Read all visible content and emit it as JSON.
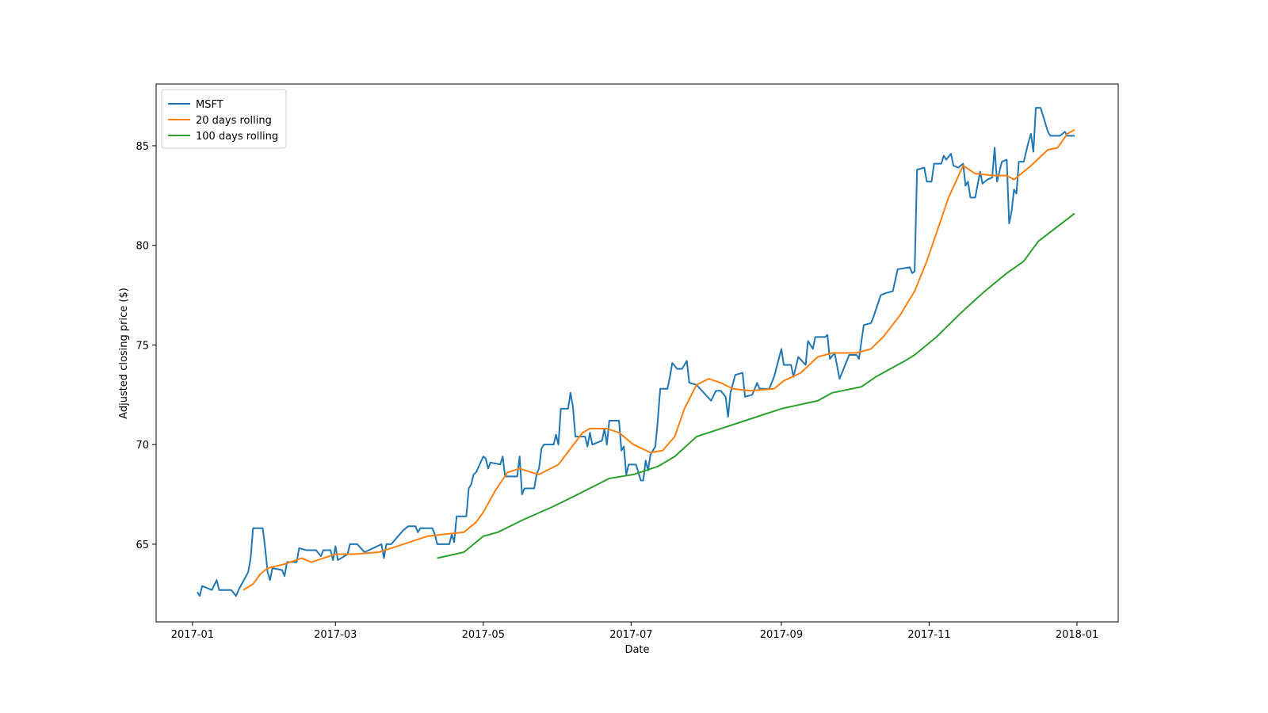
{
  "chart_data": {
    "type": "line",
    "xlabel": "Date",
    "ylabel": "Adjusted closing price ($)",
    "xlim": [
      "2016-12-17",
      "2018-01-18"
    ],
    "ylim": [
      61.1,
      88.1
    ],
    "xticks": [
      {
        "value": "2017-01-01",
        "label": "2017-01"
      },
      {
        "value": "2017-03-01",
        "label": "2017-03"
      },
      {
        "value": "2017-05-01",
        "label": "2017-05"
      },
      {
        "value": "2017-07-01",
        "label": "2017-07"
      },
      {
        "value": "2017-09-01",
        "label": "2017-09"
      },
      {
        "value": "2017-11-01",
        "label": "2017-11"
      },
      {
        "value": "2018-01-01",
        "label": "2018-01"
      }
    ],
    "yticks": [
      65,
      70,
      75,
      80,
      85
    ],
    "legend": "upper left",
    "grid": false,
    "series": [
      {
        "name": "MSFT",
        "color": "#1f77b4",
        "x": [
          "2017-01-03",
          "2017-01-04",
          "2017-01-05",
          "2017-01-09",
          "2017-01-11",
          "2017-01-12",
          "2017-01-17",
          "2017-01-19",
          "2017-01-20",
          "2017-01-24",
          "2017-01-25",
          "2017-01-26",
          "2017-01-30",
          "2017-01-31",
          "2017-02-01",
          "2017-02-02",
          "2017-02-03",
          "2017-02-07",
          "2017-02-08",
          "2017-02-09",
          "2017-02-13",
          "2017-02-14",
          "2017-02-17",
          "2017-02-21",
          "2017-02-23",
          "2017-02-24",
          "2017-02-27",
          "2017-02-28",
          "2017-03-01",
          "2017-03-02",
          "2017-03-06",
          "2017-03-07",
          "2017-03-10",
          "2017-03-13",
          "2017-03-20",
          "2017-03-21",
          "2017-03-22",
          "2017-03-24",
          "2017-03-29",
          "2017-03-31",
          "2017-04-03",
          "2017-04-04",
          "2017-04-05",
          "2017-04-10",
          "2017-04-11",
          "2017-04-12",
          "2017-04-17",
          "2017-04-18",
          "2017-04-19",
          "2017-04-20",
          "2017-04-24",
          "2017-04-25",
          "2017-04-26",
          "2017-04-27",
          "2017-04-28",
          "2017-05-01",
          "2017-05-02",
          "2017-05-03",
          "2017-05-04",
          "2017-05-08",
          "2017-05-09",
          "2017-05-10",
          "2017-05-15",
          "2017-05-16",
          "2017-05-17",
          "2017-05-18",
          "2017-05-22",
          "2017-05-23",
          "2017-05-24",
          "2017-05-25",
          "2017-05-26",
          "2017-05-30",
          "2017-05-31",
          "2017-06-01",
          "2017-06-02",
          "2017-06-05",
          "2017-06-06",
          "2017-06-07",
          "2017-06-08",
          "2017-06-12",
          "2017-06-13",
          "2017-06-14",
          "2017-06-15",
          "2017-06-19",
          "2017-06-20",
          "2017-06-21",
          "2017-06-22",
          "2017-06-26",
          "2017-06-27",
          "2017-06-28",
          "2017-06-29",
          "2017-06-30",
          "2017-07-03",
          "2017-07-05",
          "2017-07-06",
          "2017-07-07",
          "2017-07-08",
          "2017-07-09",
          "2017-07-11",
          "2017-07-12",
          "2017-07-13",
          "2017-07-16",
          "2017-07-17",
          "2017-07-18",
          "2017-07-20",
          "2017-07-22",
          "2017-07-24",
          "2017-07-25",
          "2017-07-28",
          "2017-07-31",
          "2017-08-03",
          "2017-08-05",
          "2017-08-07",
          "2017-08-09",
          "2017-08-10",
          "2017-08-11",
          "2017-08-13",
          "2017-08-16",
          "2017-08-17",
          "2017-08-20",
          "2017-08-22",
          "2017-08-23",
          "2017-08-27",
          "2017-08-29",
          "2017-09-01",
          "2017-09-02",
          "2017-09-05",
          "2017-09-06",
          "2017-09-08",
          "2017-09-11",
          "2017-09-12",
          "2017-09-14",
          "2017-09-15",
          "2017-09-19",
          "2017-09-20",
          "2017-09-21",
          "2017-09-23",
          "2017-09-25",
          "2017-09-27",
          "2017-09-29",
          "2017-10-02",
          "2017-10-03",
          "2017-10-05",
          "2017-10-08",
          "2017-10-09",
          "2017-10-12",
          "2017-10-14",
          "2017-10-17",
          "2017-10-19",
          "2017-10-24",
          "2017-10-25",
          "2017-10-26",
          "2017-10-27",
          "2017-10-30",
          "2017-10-31",
          "2017-11-02",
          "2017-11-03",
          "2017-11-06",
          "2017-11-07",
          "2017-11-08",
          "2017-11-10",
          "2017-11-11",
          "2017-11-13",
          "2017-11-15",
          "2017-11-16",
          "2017-11-17",
          "2017-11-18",
          "2017-11-20",
          "2017-11-22",
          "2017-11-23",
          "2017-11-25",
          "2017-11-27",
          "2017-11-28",
          "2017-11-29",
          "2017-12-01",
          "2017-12-03",
          "2017-12-04",
          "2017-12-05",
          "2017-12-06",
          "2017-12-07",
          "2017-12-08",
          "2017-12-10",
          "2017-12-12",
          "2017-12-13",
          "2017-12-14",
          "2017-12-15",
          "2017-12-17",
          "2017-12-20",
          "2017-12-21",
          "2017-12-25",
          "2017-12-27",
          "2017-12-28",
          "2017-12-31"
        ],
        "values": [
          62.6,
          62.4,
          62.9,
          62.7,
          63.2,
          62.7,
          62.7,
          62.4,
          62.7,
          63.6,
          64.3,
          65.8,
          65.8,
          64.8,
          63.6,
          63.2,
          63.8,
          63.7,
          63.4,
          64.1,
          64.1,
          64.8,
          64.7,
          64.7,
          64.4,
          64.7,
          64.7,
          64.2,
          64.9,
          64.2,
          64.5,
          65.0,
          65.0,
          64.6,
          65.0,
          64.3,
          65.0,
          65.0,
          65.7,
          65.9,
          65.9,
          65.6,
          65.8,
          65.8,
          65.5,
          65.0,
          65.0,
          65.5,
          65.1,
          66.4,
          66.4,
          67.8,
          68.0,
          68.5,
          68.6,
          69.4,
          69.3,
          68.8,
          69.1,
          69.0,
          69.4,
          68.4,
          68.4,
          69.4,
          67.5,
          67.8,
          67.8,
          68.5,
          68.8,
          69.8,
          70.0,
          70.0,
          70.5,
          70.0,
          71.8,
          71.8,
          72.6,
          71.9,
          70.4,
          70.4,
          69.9,
          70.6,
          70.0,
          70.2,
          70.8,
          70.0,
          71.2,
          71.2,
          69.7,
          69.9,
          68.5,
          69.0,
          69.0,
          68.2,
          68.2,
          69.2,
          68.7,
          69.5,
          69.9,
          71.2,
          72.8,
          72.8,
          73.4,
          74.1,
          73.8,
          73.8,
          74.2,
          73.1,
          73.0,
          72.6,
          72.2,
          72.7,
          72.7,
          72.4,
          71.4,
          72.6,
          73.5,
          73.6,
          72.4,
          72.5,
          73.1,
          72.8,
          72.8,
          73.4,
          74.8,
          74.0,
          74.0,
          73.4,
          74.4,
          74.0,
          75.2,
          74.8,
          75.4,
          75.4,
          75.5,
          74.3,
          74.6,
          73.3,
          73.9,
          74.5,
          74.5,
          74.3,
          76.0,
          76.1,
          76.4,
          77.5,
          77.6,
          77.7,
          78.8,
          78.9,
          78.6,
          78.7,
          83.8,
          83.9,
          83.2,
          83.2,
          84.1,
          84.1,
          84.5,
          84.3,
          84.6,
          84.0,
          83.9,
          84.1,
          83.0,
          83.2,
          82.4,
          82.4,
          83.7,
          83.1,
          83.3,
          83.4,
          84.9,
          83.2,
          84.2,
          84.3,
          81.1,
          81.7,
          82.8,
          82.6,
          84.2,
          84.2,
          85.2,
          85.6,
          84.7,
          86.9,
          86.9,
          85.7,
          85.5,
          85.5,
          85.7,
          85.5,
          85.5
        ]
      },
      {
        "name": "20 days rolling",
        "color": "#ff7f0e",
        "x": [
          "2017-01-22",
          "2017-01-26",
          "2017-01-29",
          "2017-02-01",
          "2017-02-08",
          "2017-02-15",
          "2017-02-19",
          "2017-02-24",
          "2017-03-01",
          "2017-03-09",
          "2017-03-19",
          "2017-03-29",
          "2017-04-08",
          "2017-04-15",
          "2017-04-23",
          "2017-04-28",
          "2017-05-01",
          "2017-05-06",
          "2017-05-11",
          "2017-05-16",
          "2017-05-21",
          "2017-05-24",
          "2017-06-01",
          "2017-06-06",
          "2017-06-11",
          "2017-06-14",
          "2017-06-21",
          "2017-06-26",
          "2017-07-02",
          "2017-07-09",
          "2017-07-14",
          "2017-07-19",
          "2017-07-23",
          "2017-07-28",
          "2017-08-02",
          "2017-08-07",
          "2017-08-12",
          "2017-08-19",
          "2017-08-29",
          "2017-09-02",
          "2017-09-09",
          "2017-09-16",
          "2017-09-22",
          "2017-10-02",
          "2017-10-08",
          "2017-10-13",
          "2017-10-20",
          "2017-10-26",
          "2017-10-31",
          "2017-11-09",
          "2017-11-15",
          "2017-11-20",
          "2017-11-28",
          "2017-12-03",
          "2017-12-06",
          "2017-12-13",
          "2017-12-20",
          "2017-12-24",
          "2017-12-28",
          "2017-12-31"
        ],
        "values": [
          62.7,
          63.0,
          63.5,
          63.8,
          64.0,
          64.3,
          64.1,
          64.3,
          64.5,
          64.5,
          64.6,
          65.0,
          65.4,
          65.5,
          65.6,
          66.1,
          66.6,
          67.7,
          68.6,
          68.8,
          68.6,
          68.5,
          69.0,
          69.8,
          70.6,
          70.8,
          70.8,
          70.6,
          70.0,
          69.6,
          69.7,
          70.4,
          71.8,
          73.0,
          73.3,
          73.1,
          72.8,
          72.7,
          72.8,
          73.2,
          73.6,
          74.4,
          74.6,
          74.6,
          74.8,
          75.4,
          76.5,
          77.7,
          79.2,
          82.4,
          84.0,
          83.6,
          83.5,
          83.5,
          83.3,
          84.0,
          84.8,
          84.9,
          85.6,
          85.8
        ]
      },
      {
        "name": "100 days rolling",
        "color": "#2ca02c",
        "x": [
          "2017-04-12",
          "2017-04-23",
          "2017-05-01",
          "2017-05-07",
          "2017-05-17",
          "2017-05-30",
          "2017-06-09",
          "2017-06-22",
          "2017-07-02",
          "2017-07-12",
          "2017-07-19",
          "2017-07-28",
          "2017-08-07",
          "2017-08-17",
          "2017-09-01",
          "2017-09-16",
          "2017-09-22",
          "2017-10-04",
          "2017-10-10",
          "2017-10-22",
          "2017-10-26",
          "2017-11-04",
          "2017-11-14",
          "2017-11-23",
          "2017-12-03",
          "2017-12-10",
          "2017-12-16",
          "2017-12-31"
        ],
        "values": [
          64.3,
          64.6,
          65.4,
          65.6,
          66.2,
          66.9,
          67.5,
          68.3,
          68.5,
          68.9,
          69.4,
          70.4,
          70.8,
          71.2,
          71.8,
          72.2,
          72.6,
          72.9,
          73.4,
          74.2,
          74.5,
          75.4,
          76.6,
          77.6,
          78.6,
          79.2,
          80.2,
          81.6
        ]
      }
    ]
  }
}
